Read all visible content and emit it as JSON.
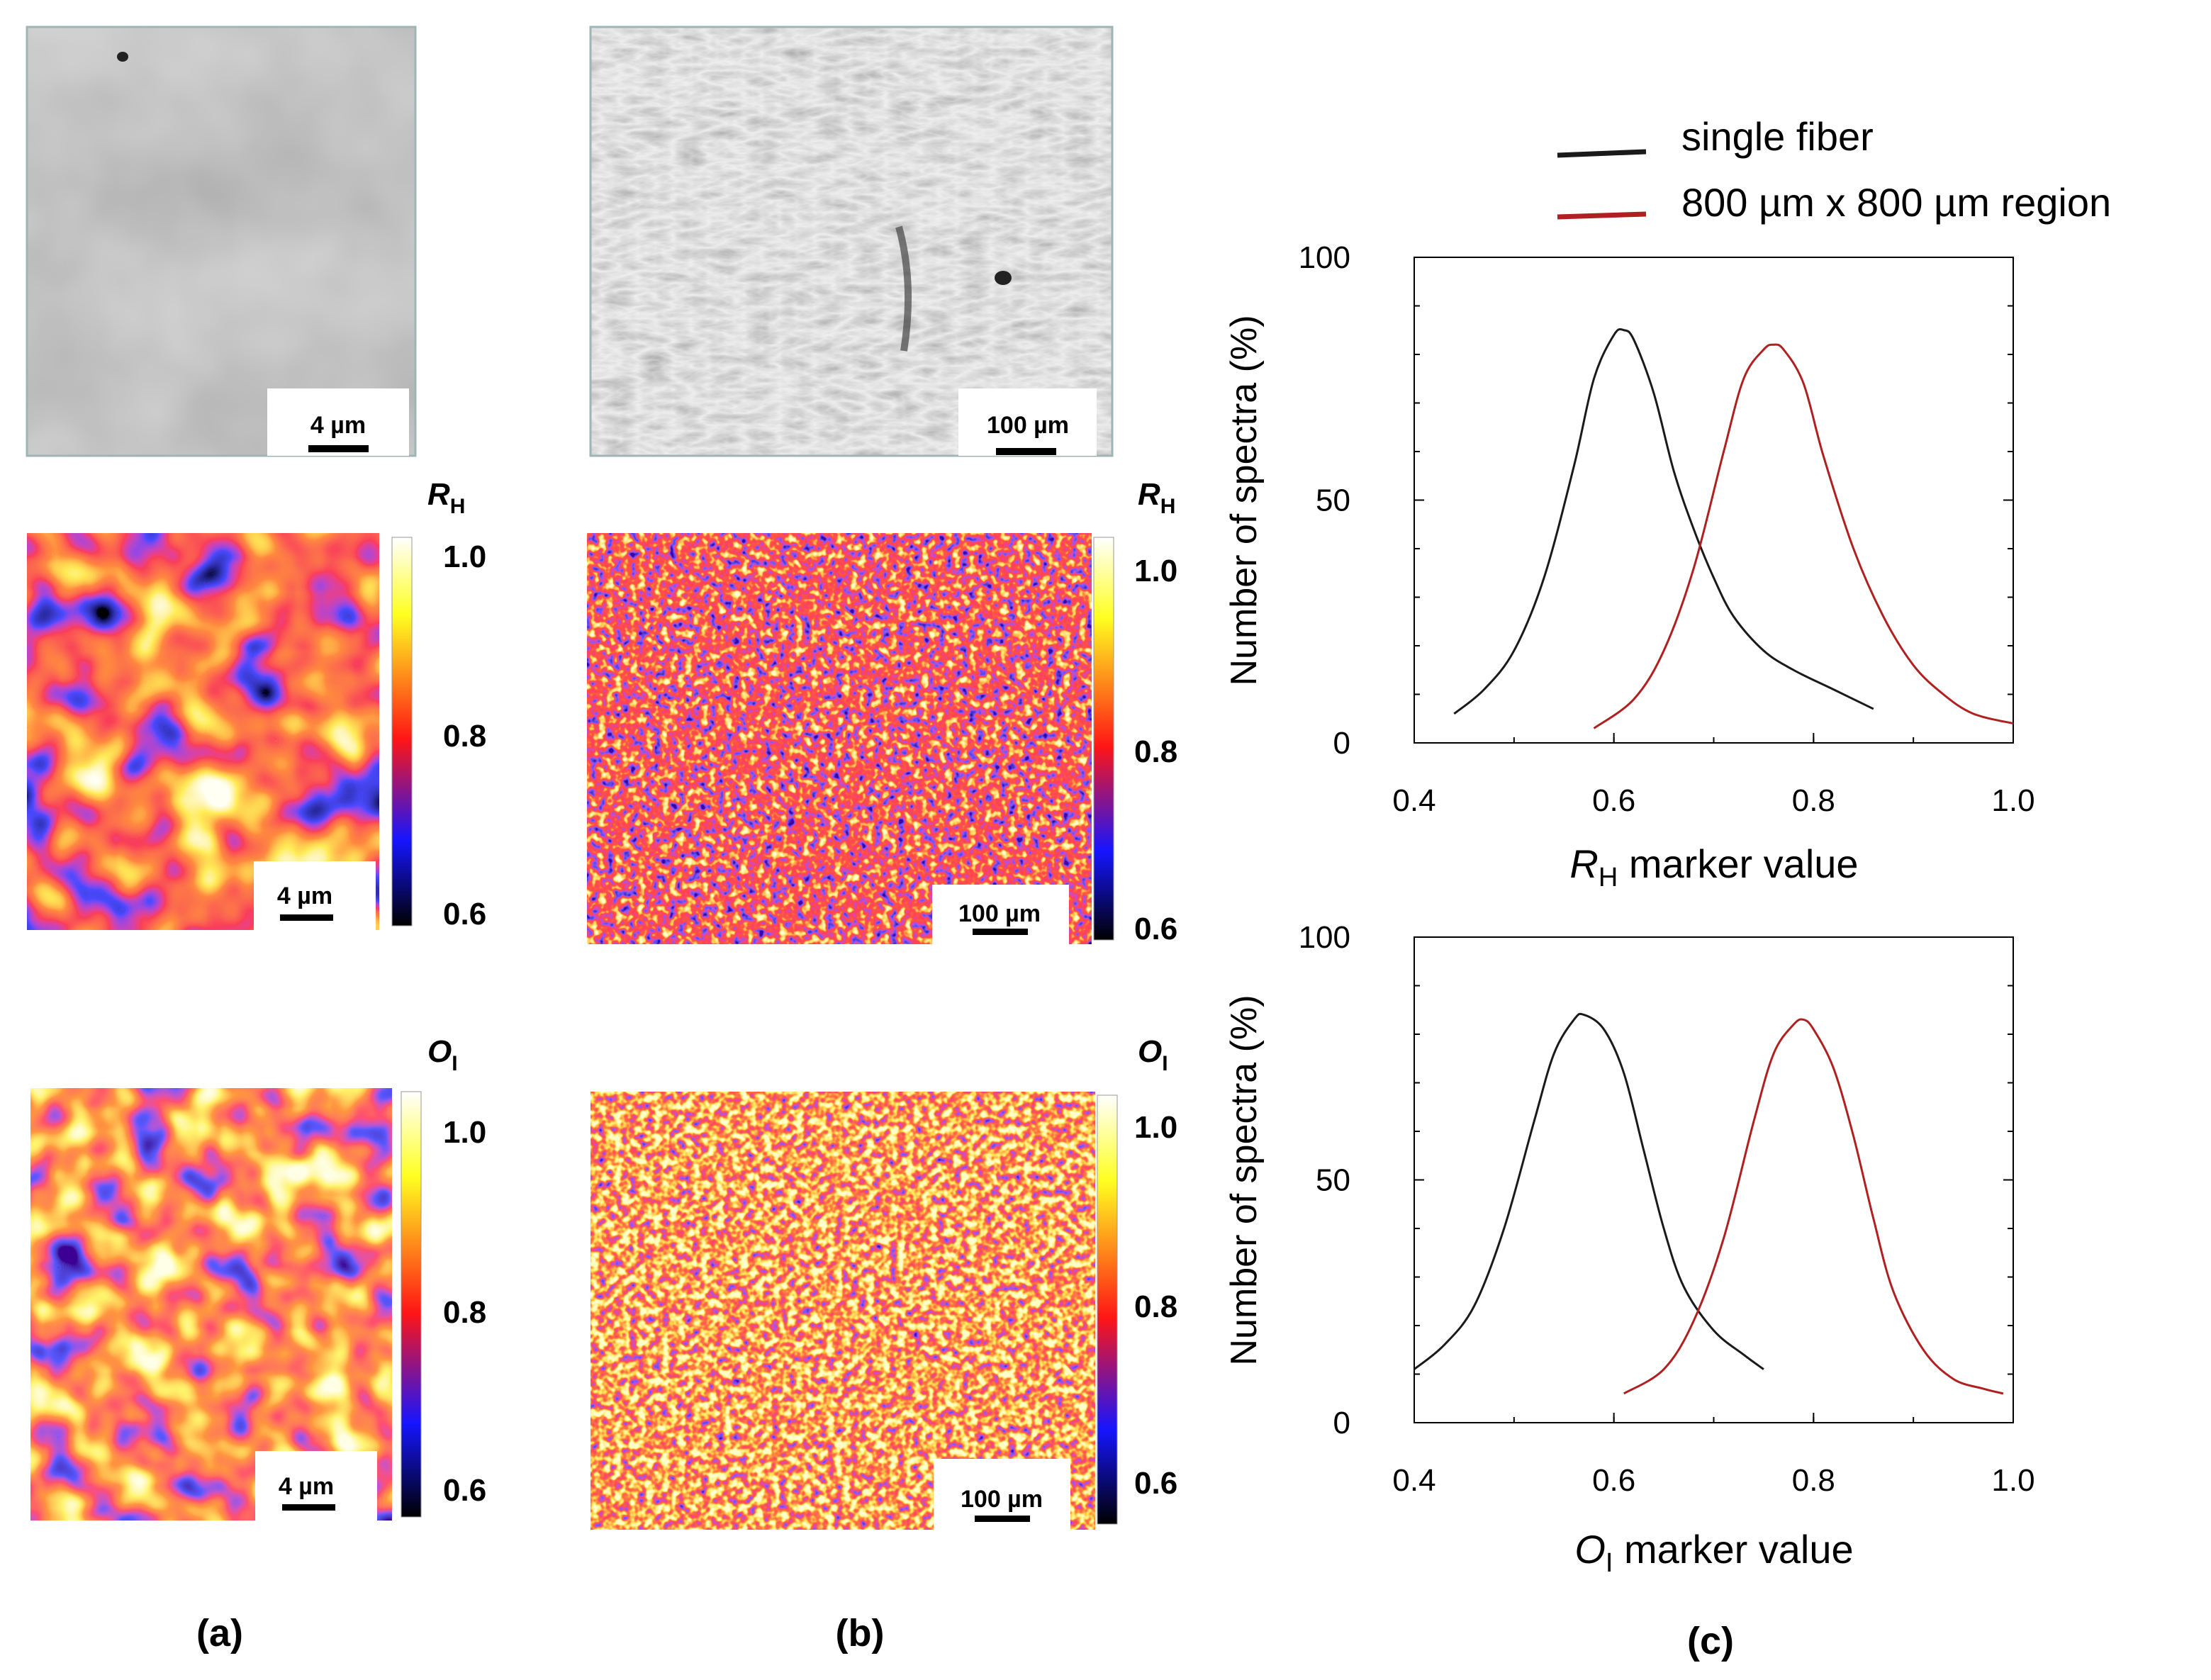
{
  "figure": {
    "panel_labels": [
      "(a)",
      "(b)",
      "(c)"
    ],
    "col_a": {
      "scalebar_label": "4 µm",
      "rh_colorbar_ticks": [
        "1.0",
        "0.8",
        "0.6"
      ],
      "oi_colorbar_ticks": [
        "1.0",
        "0.8",
        "0.6"
      ]
    },
    "col_b": {
      "scalebar_label": "100 µm",
      "rh_colorbar_ticks": [
        "1.0",
        "0.8",
        "0.6"
      ],
      "oi_colorbar_ticks": [
        "1.0",
        "0.8",
        "0.6"
      ]
    },
    "map_labels": {
      "rh": {
        "main": "R",
        "sub": "H"
      },
      "oi": {
        "main": "O",
        "sub": "I"
      }
    },
    "colors": {
      "single_fiber": "#1a1a1a",
      "region": "#b02020",
      "colormap": [
        "#000000",
        "#1010ff",
        "#ff1010",
        "#ffff20",
        "#ffffff"
      ]
    }
  },
  "chart_data": [
    {
      "type": "line",
      "title": "",
      "xlabel_main": "R",
      "xlabel_sub": "H",
      "xlabel_rest": " marker value",
      "ylabel": "Number of spectra (%)",
      "xlim": [
        0.4,
        1.0
      ],
      "ylim": [
        0,
        100
      ],
      "xticks": [
        "0.4",
        "0.6",
        "0.8",
        "1.0"
      ],
      "yticks": [
        "0",
        "50",
        "100"
      ],
      "legend": [
        "single fiber",
        "800 µm x 800 µm region"
      ],
      "legend_position": "top-right",
      "series": [
        {
          "name": "single fiber",
          "color": "#1a1a1a",
          "x": [
            0.44,
            0.47,
            0.5,
            0.53,
            0.56,
            0.58,
            0.6,
            0.61,
            0.62,
            0.64,
            0.66,
            0.68,
            0.7,
            0.72,
            0.75,
            0.78,
            0.82,
            0.86
          ],
          "y": [
            6,
            11,
            19,
            34,
            57,
            75,
            84,
            85,
            83,
            72,
            56,
            44,
            34,
            26,
            19,
            15,
            11,
            7
          ]
        },
        {
          "name": "800 µm x 800 µm region",
          "color": "#b02020",
          "x": [
            0.58,
            0.62,
            0.65,
            0.68,
            0.71,
            0.73,
            0.75,
            0.76,
            0.77,
            0.79,
            0.81,
            0.84,
            0.87,
            0.9,
            0.93,
            0.96,
            1.0
          ],
          "y": [
            3,
            9,
            19,
            36,
            60,
            75,
            81,
            82,
            81,
            74,
            59,
            40,
            26,
            16,
            10,
            6,
            4
          ]
        }
      ]
    },
    {
      "type": "line",
      "title": "",
      "xlabel_main": "O",
      "xlabel_sub": "I",
      "xlabel_rest": " marker value",
      "ylabel": "Number of spectra (%)",
      "xlim": [
        0.4,
        1.0
      ],
      "ylim": [
        0,
        100
      ],
      "xticks": [
        "0.4",
        "0.6",
        "0.8",
        "1.0"
      ],
      "yticks": [
        "0",
        "50",
        "100"
      ],
      "series": [
        {
          "name": "single fiber",
          "color": "#1a1a1a",
          "x": [
            0.4,
            0.43,
            0.46,
            0.49,
            0.52,
            0.54,
            0.56,
            0.57,
            0.59,
            0.61,
            0.63,
            0.65,
            0.67,
            0.7,
            0.73,
            0.75
          ],
          "y": [
            11,
            16,
            24,
            40,
            62,
            76,
            83,
            84,
            81,
            72,
            56,
            40,
            28,
            19,
            14,
            11
          ]
        },
        {
          "name": "800 µm x 800 µm region",
          "color": "#b02020",
          "x": [
            0.61,
            0.65,
            0.68,
            0.71,
            0.74,
            0.76,
            0.78,
            0.79,
            0.8,
            0.82,
            0.84,
            0.86,
            0.88,
            0.91,
            0.94,
            0.97,
            0.99
          ],
          "y": [
            6,
            11,
            21,
            38,
            62,
            76,
            82,
            83,
            81,
            73,
            59,
            42,
            27,
            15,
            9,
            7,
            6
          ]
        }
      ]
    }
  ]
}
